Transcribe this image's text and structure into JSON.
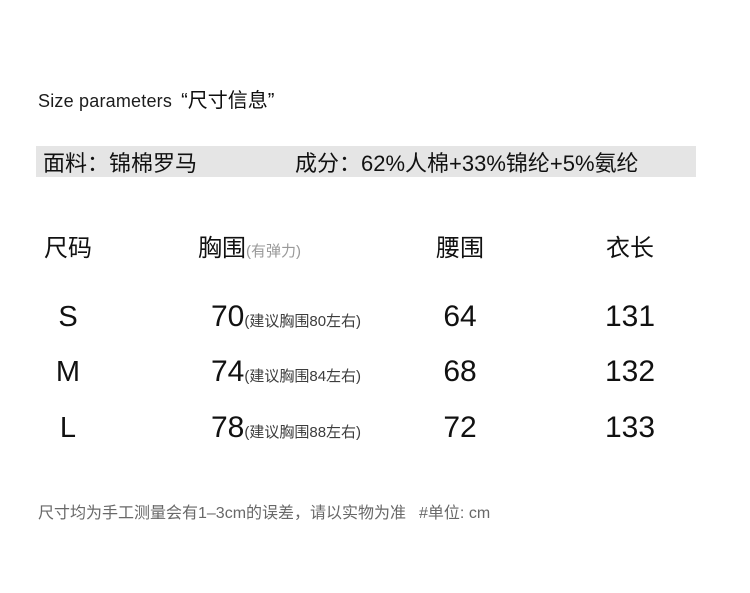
{
  "title": {
    "en": "Size parameters",
    "cn": "“尺寸信息”"
  },
  "fabric": {
    "material": "面料：锦棉罗马",
    "composition": "成分：62%人棉+33%锦纶+5%氨纶"
  },
  "table": {
    "headers": {
      "size": "尺码",
      "bust": "胸围",
      "bust_sub": "(有弹力)",
      "waist": "腰围",
      "length": "衣长"
    },
    "rows": [
      {
        "size": "S",
        "bust": "70",
        "bust_note": "(建议胸围80左右)",
        "waist": "64",
        "length": "131"
      },
      {
        "size": "M",
        "bust": "74",
        "bust_note": "(建议胸围84左右)",
        "waist": "68",
        "length": "132"
      },
      {
        "size": "L",
        "bust": "78",
        "bust_note": "(建议胸围88左右)",
        "waist": "72",
        "length": "133"
      }
    ]
  },
  "note": {
    "text": "尺寸均为手工测量会有1–3cm的误差，请以实物为准",
    "unit": "#单位: cm"
  },
  "colors": {
    "bar_bg": "#e5e5e5",
    "text": "#111111",
    "muted": "#999999",
    "annotation": "#3d3d3d",
    "note": "#686868"
  }
}
